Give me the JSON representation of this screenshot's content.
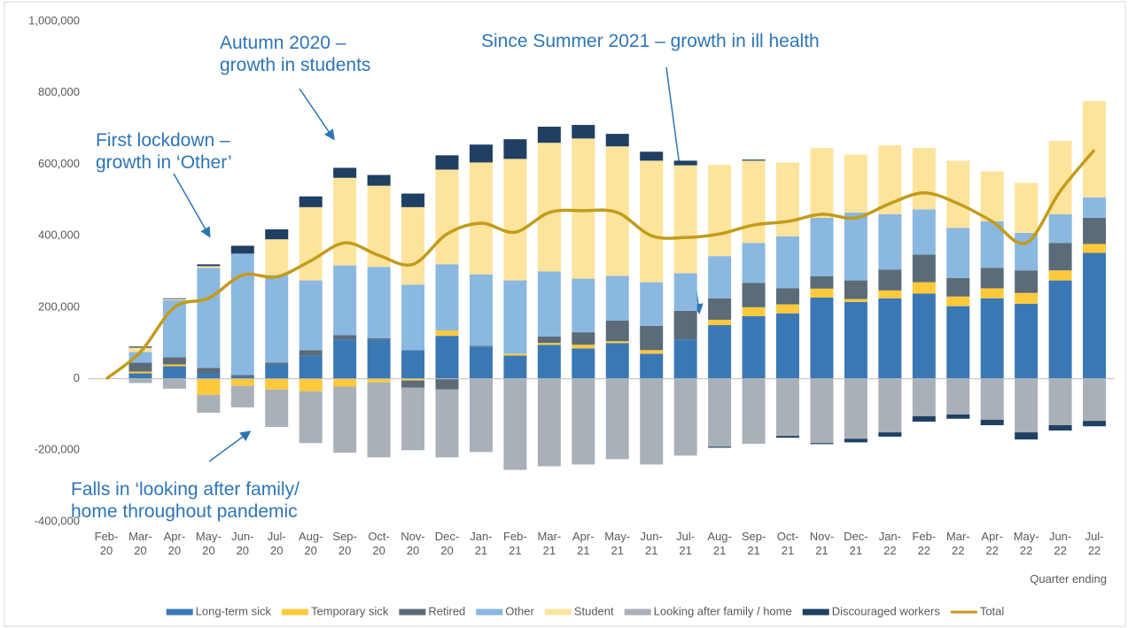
{
  "chart_data": {
    "type": "stacked-bar-line",
    "categories": [
      "Feb-20",
      "Mar-20",
      "Apr-20",
      "May-20",
      "Jun-20",
      "Jul-20",
      "Aug-20",
      "Sep-20",
      "Oct-20",
      "Nov-20",
      "Dec-20",
      "Jan-21",
      "Feb-21",
      "Mar-21",
      "Apr-21",
      "May-21",
      "Jun-21",
      "Jul-21",
      "Aug-21",
      "Sep-21",
      "Oct-21",
      "Nov-21",
      "Dec-21",
      "Jan-22",
      "Feb-22",
      "Mar-22",
      "Apr-22",
      "May-22",
      "Jun-22",
      "Jul-22"
    ],
    "x_label": "Quarter ending",
    "ylim": [
      -400000,
      1000000
    ],
    "yticks": [
      {
        "value": -400000,
        "label": "-400,000"
      },
      {
        "value": -200000,
        "label": "-200,000"
      },
      0,
      {
        "value": 200000,
        "label": "200,000"
      },
      {
        "value": 400000,
        "label": "400,000"
      },
      {
        "value": 600000,
        "label": "600,000"
      },
      {
        "value": 800000,
        "label": "800,000"
      },
      {
        "value": 1000000,
        "label": "1,000,000"
      }
    ],
    "grid": false,
    "series": [
      {
        "name": "Long-term sick",
        "color": "#3a78b5",
        "values": [
          0,
          15000,
          35000,
          15000,
          5000,
          40000,
          65000,
          110000,
          110000,
          80000,
          120000,
          90000,
          65000,
          95000,
          85000,
          100000,
          70000,
          110000,
          150000,
          175000,
          183000,
          227000,
          215000,
          225000,
          238000,
          203000,
          225000,
          210000,
          275000,
          352000
        ]
      },
      {
        "name": "Temporary sick",
        "color": "#ffc93c",
        "values": [
          0,
          5000,
          5000,
          -45000,
          -20000,
          -30000,
          -35000,
          -22000,
          -10000,
          -5000,
          15000,
          0,
          5000,
          5000,
          10000,
          5000,
          10000,
          0,
          15000,
          25000,
          25000,
          25000,
          8000,
          22000,
          32000,
          27000,
          28000,
          30000,
          28000,
          25000
        ]
      },
      {
        "name": "Retired",
        "color": "#5b6b78",
        "values": [
          0,
          25000,
          20000,
          15000,
          5000,
          5000,
          15000,
          12000,
          3000,
          -20000,
          -30000,
          2000,
          0,
          18000,
          35000,
          58000,
          68000,
          80000,
          60000,
          68000,
          45000,
          35000,
          52000,
          58000,
          77000,
          52000,
          57000,
          63000,
          77000,
          73000
        ]
      },
      {
        "name": "Other",
        "color": "#8ab8e0",
        "values": [
          0,
          30000,
          160000,
          280000,
          340000,
          245000,
          195000,
          195000,
          200000,
          183000,
          185000,
          200000,
          205000,
          182000,
          150000,
          125000,
          122000,
          105000,
          118000,
          112000,
          145000,
          163000,
          190000,
          155000,
          127000,
          140000,
          130000,
          105000,
          80000,
          57000
        ]
      },
      {
        "name": "Student",
        "color": "#fde49c",
        "values": [
          0,
          12000,
          3000,
          5000,
          0,
          100000,
          205000,
          245000,
          227000,
          217000,
          265000,
          313000,
          340000,
          360000,
          392000,
          362000,
          340000,
          302000,
          255000,
          230000,
          207000,
          195000,
          162000,
          193000,
          172000,
          188000,
          140000,
          140000,
          205000,
          270000
        ]
      },
      {
        "name": "Looking after family / home",
        "color": "#a9b0b7",
        "values": [
          0,
          -12000,
          -28000,
          -50000,
          -60000,
          -105000,
          -145000,
          -185000,
          -210000,
          -175000,
          -190000,
          -205000,
          -255000,
          -245000,
          -240000,
          -225000,
          -240000,
          -215000,
          -190000,
          -182000,
          -160000,
          -180000,
          -168000,
          -150000,
          -105000,
          -100000,
          -115000,
          -150000,
          -130000,
          -118000
        ]
      },
      {
        "name": "Discouraged workers",
        "color": "#1f3f63",
        "values": [
          0,
          3000,
          2000,
          5000,
          22000,
          28000,
          30000,
          28000,
          30000,
          38000,
          40000,
          50000,
          55000,
          45000,
          38000,
          35000,
          25000,
          13000,
          -3000,
          3000,
          -5000,
          -3000,
          -10000,
          -12000,
          -15000,
          -12000,
          -15000,
          -20000,
          -15000,
          -15000
        ]
      },
      {
        "name": "Total",
        "color": "#c39b1a",
        "line": true,
        "values": [
          0,
          75000,
          200000,
          225000,
          290000,
          285000,
          330000,
          380000,
          345000,
          320000,
          405000,
          435000,
          410000,
          465000,
          470000,
          465000,
          400000,
          395000,
          405000,
          430000,
          440000,
          460000,
          450000,
          490000,
          520000,
          490000,
          440000,
          380000,
          525000,
          640000
        ]
      }
    ],
    "annotations": [
      "Autumn 2020 –\ngrowth in students",
      "Since Summer 2021 – growth in ill health",
      "First lockdown –\ngrowth in ‘Other’",
      "Falls in ‘looking after family/\nhome throughout pandemic"
    ]
  }
}
